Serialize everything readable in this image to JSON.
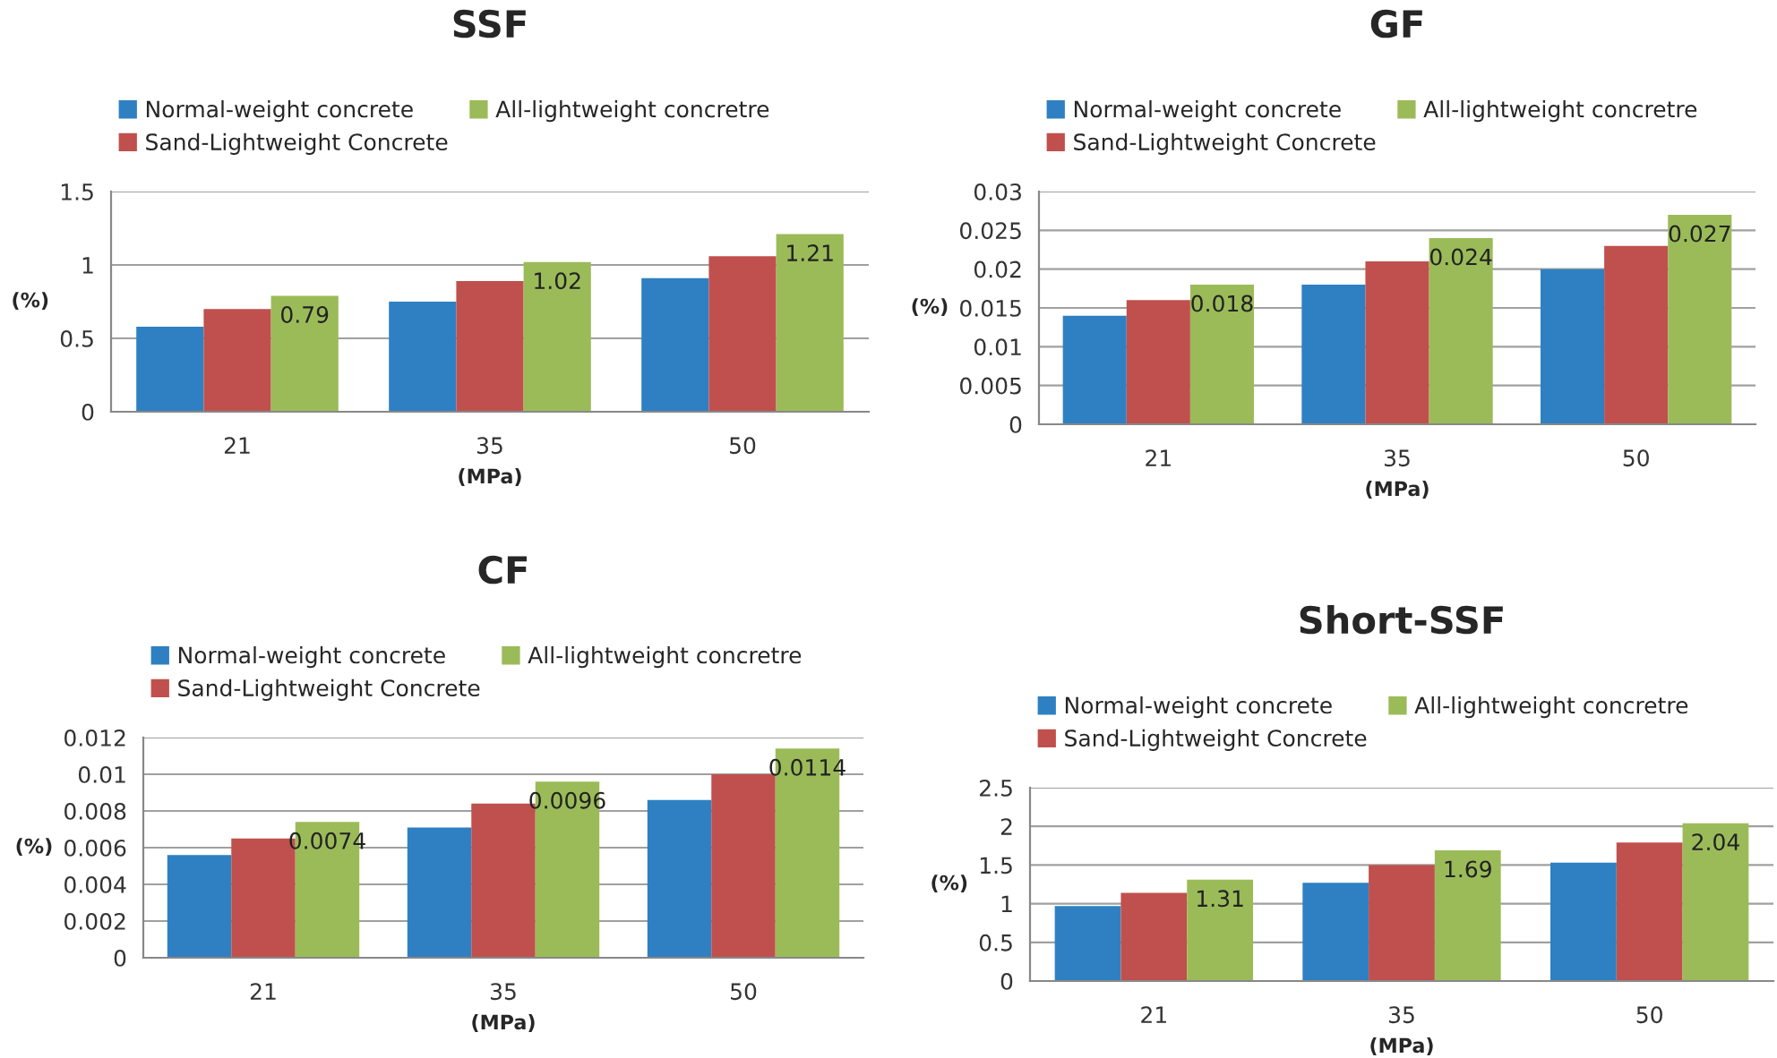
{
  "chart_data": [
    {
      "type": "bar",
      "title": "SSF",
      "xlabel": "(MPa)",
      "ylabel": "(%)",
      "categories": [
        "21",
        "35",
        "50"
      ],
      "ylim": [
        0,
        1.5
      ],
      "yticks": [
        0,
        0.5,
        1,
        1.5
      ],
      "grid": "y",
      "legend": "top",
      "series": [
        {
          "name": "Normal-weight concrete",
          "color": "#2e80c2",
          "values": [
            0.58,
            0.75,
            0.91
          ]
        },
        {
          "name": "Sand-Lightweight Concrete",
          "color": "#c0504d",
          "values": [
            0.7,
            0.89,
            1.06
          ]
        },
        {
          "name": "All-lightweight concretre",
          "color": "#9bbb59",
          "values": [
            0.79,
            1.02,
            1.21
          ],
          "value_labels": [
            "0.79",
            "1.02",
            "1.21"
          ]
        }
      ]
    },
    {
      "type": "bar",
      "title": "GF",
      "xlabel": "(MPa)",
      "ylabel": "(%)",
      "categories": [
        "21",
        "35",
        "50"
      ],
      "ylim": [
        0,
        0.03
      ],
      "yticks": [
        0,
        0.005,
        0.01,
        0.015,
        0.02,
        0.025,
        0.03
      ],
      "grid": "y",
      "legend": "top",
      "series": [
        {
          "name": "Normal-weight concrete",
          "color": "#2e80c2",
          "values": [
            0.014,
            0.018,
            0.02
          ]
        },
        {
          "name": "Sand-Lightweight Concrete",
          "color": "#c0504d",
          "values": [
            0.016,
            0.021,
            0.023
          ]
        },
        {
          "name": "All-lightweight concretre",
          "color": "#9bbb59",
          "values": [
            0.018,
            0.024,
            0.027
          ],
          "value_labels": [
            "0.018",
            "0.024",
            "0.027"
          ]
        }
      ]
    },
    {
      "type": "bar",
      "title": "CF",
      "xlabel": "(MPa)",
      "ylabel": "(%)",
      "categories": [
        "21",
        "35",
        "50"
      ],
      "ylim": [
        0,
        0.012
      ],
      "yticks": [
        0,
        0.002,
        0.004,
        0.006,
        0.008,
        0.01,
        0.012
      ],
      "grid": "y",
      "legend": "top",
      "series": [
        {
          "name": "Normal-weight concrete",
          "color": "#2e80c2",
          "values": [
            0.0056,
            0.0071,
            0.0086
          ]
        },
        {
          "name": "Sand-Lightweight Concrete",
          "color": "#c0504d",
          "values": [
            0.0065,
            0.0084,
            0.01
          ]
        },
        {
          "name": "All-lightweight concretre",
          "color": "#9bbb59",
          "values": [
            0.0074,
            0.0096,
            0.0114
          ],
          "value_labels": [
            "0.0074",
            "0.0096",
            "0.0114"
          ]
        }
      ]
    },
    {
      "type": "bar",
      "title": "Short-SSF",
      "xlabel": "(MPa)",
      "ylabel": "(%)",
      "categories": [
        "21",
        "35",
        "50"
      ],
      "ylim": [
        0,
        2.5
      ],
      "yticks": [
        0,
        0.5,
        1,
        1.5,
        2,
        2.5
      ],
      "grid": "y",
      "legend": "top",
      "series": [
        {
          "name": "Normal-weight concrete",
          "color": "#2e80c2",
          "values": [
            0.97,
            1.27,
            1.53
          ]
        },
        {
          "name": "Sand-Lightweight Concrete",
          "color": "#c0504d",
          "values": [
            1.14,
            1.5,
            1.79
          ]
        },
        {
          "name": "All-lightweight concretre",
          "color": "#9bbb59",
          "values": [
            1.31,
            1.69,
            2.04
          ],
          "value_labels": [
            "1.31",
            "1.69",
            "2.04"
          ]
        }
      ]
    }
  ]
}
